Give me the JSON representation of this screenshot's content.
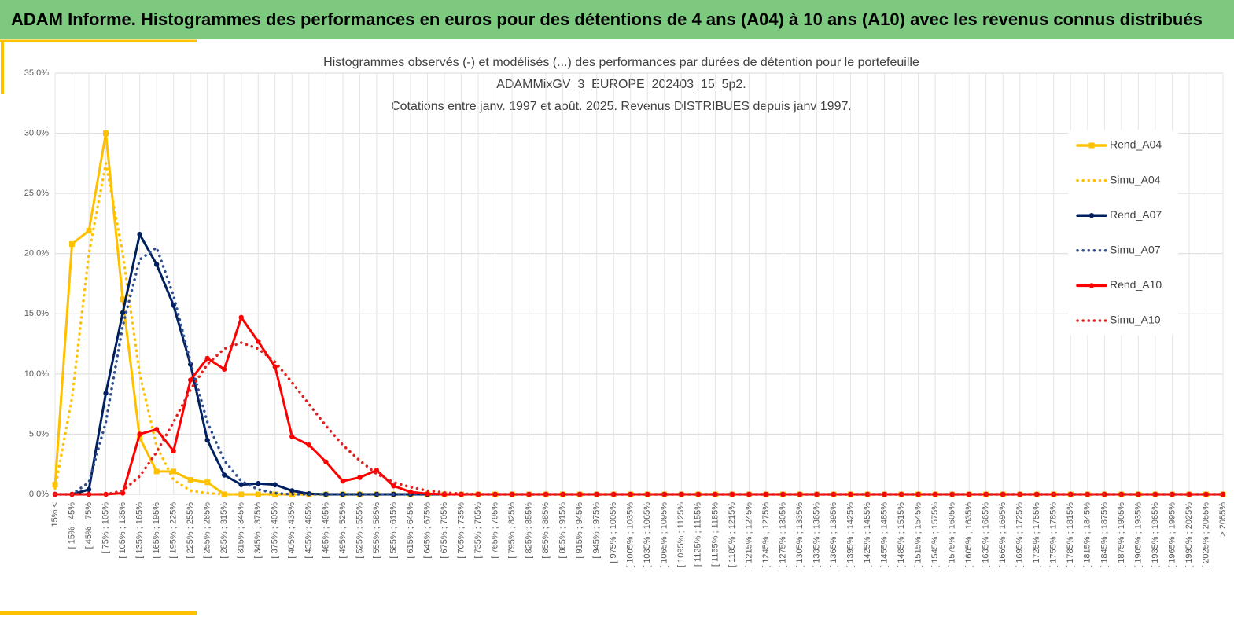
{
  "header": {
    "title": "ADAM Informe. Histogrammes des performances en euros pour des détentions de 4 ans (A04) à 10 ans (A10) avec les revenus connus distribués"
  },
  "chart_data": {
    "type": "line",
    "title": [
      "Histogrammes observés (-) et modélisés (...) des performances  par durées de détention pour le portefeuille",
      "ADAMMixGV_3_EUROPE_202403_15_5p2.",
      "Cotations  entre janv. 1997 et août. 2025. Revenus DISTRIBUES depuis janv 1997."
    ],
    "categories": [
      "15% <",
      "[ 15% ; 45%",
      "[ 45% ; 75%",
      "[ 75% ; 105%",
      "[ 105% ; 135%",
      "[ 135% ; 165%",
      "[ 165% ; 195%",
      "[ 195% ; 225%",
      "[ 225% ; 255%",
      "[ 255% ; 285%",
      "[ 285% ; 315%",
      "[ 315% ; 345%",
      "[ 345% ; 375%",
      "[ 375% ; 405%",
      "[ 405% ; 435%",
      "[ 435% ; 465%",
      "[ 465% ; 495%",
      "[ 495% ; 525%",
      "[ 525% ; 555%",
      "[ 555% ; 585%",
      "[ 585% ; 615%",
      "[ 615% ; 645%",
      "[ 645% ; 675%",
      "[ 675% ; 705%",
      "[ 705% ; 735%",
      "[ 735% ; 765%",
      "[ 765% ; 795%",
      "[ 795% ; 825%",
      "[ 825% ; 855%",
      "[ 855% ; 885%",
      "[ 885% ; 915%",
      "[ 915% ; 945%",
      "[ 945% ; 975%",
      "[ 975% ; 1005%",
      "[ 1005% ; 1035%",
      "[ 1035% ; 1065%",
      "[ 1065% ; 1095%",
      "[ 1095% ; 1125%",
      "[ 1125% ; 1155%",
      "[ 1155% ; 1185%",
      "[ 1185% ; 1215%",
      "[ 1215% ; 1245%",
      "[ 1245% ; 1275%",
      "[ 1275% ; 1305%",
      "[ 1305% ; 1335%",
      "[ 1335% ; 1365%",
      "[ 1365% ; 1395%",
      "[ 1395% ; 1425%",
      "[ 1425% ; 1455%",
      "[ 1455% ; 1485%",
      "[ 1485% ; 1515%",
      "[ 1515% ; 1545%",
      "[ 1545% ; 1575%",
      "[ 1575% ; 1605%",
      "[ 1605% ; 1635%",
      "[ 1635% ; 1665%",
      "[ 1665% ; 1695%",
      "[ 1695% ; 1725%",
      "[ 1725% ; 1755%",
      "[ 1755% ; 1785%",
      "[ 1785% ; 1815%",
      "[ 1815% ; 1845%",
      "[ 1845% ; 1875%",
      "[ 1875% ; 1905%",
      "[ 1905% ; 1935%",
      "[ 1935% ; 1965%",
      "[ 1965% ; 1995%",
      "[ 1995% ; 2025%",
      "[ 2025% ; 2055%",
      "> 2055%"
    ],
    "series": [
      {
        "name": "Rend_A04",
        "color": "#ffc000",
        "style": "solid",
        "marker": "square",
        "values": [
          0.8,
          20.8,
          21.9,
          30.0,
          16.2,
          4.7,
          1.9,
          1.9,
          1.2,
          1.0,
          0,
          0,
          0,
          0,
          0,
          0,
          0,
          0,
          0,
          0,
          0,
          0,
          0,
          0,
          0,
          0,
          0,
          0,
          0,
          0,
          0,
          0,
          0,
          0,
          0,
          0,
          0,
          0,
          0,
          0,
          0,
          0,
          0,
          0,
          0,
          0,
          0,
          0,
          0,
          0,
          0,
          0,
          0,
          0,
          0,
          0,
          0,
          0,
          0,
          0,
          0,
          0,
          0,
          0,
          0,
          0,
          0,
          0,
          0,
          0
        ]
      },
      {
        "name": "Simu_A04",
        "color": "#ffc000",
        "style": "dotted",
        "marker": null,
        "values": [
          0.5,
          8,
          20,
          27.5,
          20,
          10,
          4,
          1.2,
          0.3,
          0.1,
          0,
          0,
          0,
          0,
          0,
          0,
          0,
          0,
          0,
          0,
          0,
          0,
          0,
          0,
          0,
          0,
          0,
          0,
          0,
          0,
          0,
          0,
          0,
          0,
          0,
          0,
          0,
          0,
          0,
          0,
          0,
          0,
          0,
          0,
          0,
          0,
          0,
          0,
          0,
          0,
          0,
          0,
          0,
          0,
          0,
          0,
          0,
          0,
          0,
          0,
          0,
          0,
          0,
          0,
          0,
          0,
          0,
          0,
          0,
          0
        ]
      },
      {
        "name": "Rend_A07",
        "color": "#002060",
        "style": "solid",
        "marker": "circle",
        "values": [
          0,
          0,
          0.4,
          8.4,
          15.1,
          21.6,
          19.1,
          15.7,
          10.8,
          4.5,
          1.6,
          0.8,
          0.9,
          0.8,
          0.3,
          0.05,
          0,
          0,
          0,
          0,
          0,
          0,
          0,
          0,
          0,
          0,
          0,
          0,
          0,
          0,
          0,
          0,
          0,
          0,
          0,
          0,
          0,
          0,
          0,
          0,
          0,
          0,
          0,
          0,
          0,
          0,
          0,
          0,
          0,
          0,
          0,
          0,
          0,
          0,
          0,
          0,
          0,
          0,
          0,
          0,
          0,
          0,
          0,
          0,
          0,
          0,
          0,
          0,
          0,
          0
        ]
      },
      {
        "name": "Simu_A07",
        "color": "#2f4f8f",
        "style": "dotted",
        "marker": null,
        "values": [
          0,
          0,
          1,
          6,
          14,
          19.5,
          20.5,
          16.5,
          11,
          6,
          2.8,
          1.1,
          0.4,
          0.1,
          0,
          0,
          0,
          0,
          0,
          0,
          0,
          0,
          0,
          0,
          0,
          0,
          0,
          0,
          0,
          0,
          0,
          0,
          0,
          0,
          0,
          0,
          0,
          0,
          0,
          0,
          0,
          0,
          0,
          0,
          0,
          0,
          0,
          0,
          0,
          0,
          0,
          0,
          0,
          0,
          0,
          0,
          0,
          0,
          0,
          0,
          0,
          0,
          0,
          0,
          0,
          0,
          0,
          0,
          0,
          0
        ]
      },
      {
        "name": "Rend_A10",
        "color": "#ff0000",
        "style": "solid",
        "marker": "circle",
        "values": [
          0,
          0,
          0,
          0,
          0.1,
          5.0,
          5.4,
          3.6,
          9.5,
          11.3,
          10.4,
          14.7,
          12.7,
          10.6,
          4.8,
          4.1,
          2.7,
          1.1,
          1.4,
          2.0,
          0.7,
          0.2,
          0.05,
          0,
          0,
          0,
          0,
          0,
          0,
          0,
          0,
          0,
          0,
          0,
          0,
          0,
          0,
          0,
          0,
          0,
          0,
          0,
          0,
          0,
          0,
          0,
          0,
          0,
          0,
          0,
          0,
          0,
          0,
          0,
          0,
          0,
          0,
          0,
          0,
          0,
          0,
          0,
          0,
          0,
          0,
          0,
          0,
          0,
          0,
          0
        ]
      },
      {
        "name": "Simu_A10",
        "color": "#e02020",
        "style": "dotted",
        "marker": null,
        "values": [
          0,
          0,
          0,
          0,
          0.3,
          1.5,
          3.5,
          6,
          8.7,
          10.8,
          12.1,
          12.6,
          12.1,
          11,
          9.3,
          7.5,
          5.7,
          4.1,
          2.8,
          1.7,
          1.0,
          0.6,
          0.3,
          0.15,
          0.05,
          0,
          0,
          0,
          0,
          0,
          0,
          0,
          0,
          0,
          0,
          0,
          0,
          0,
          0,
          0,
          0,
          0,
          0,
          0,
          0,
          0,
          0,
          0,
          0,
          0,
          0,
          0,
          0,
          0,
          0,
          0,
          0,
          0,
          0,
          0,
          0,
          0,
          0,
          0,
          0,
          0,
          0,
          0,
          0,
          0
        ]
      }
    ],
    "ylim": [
      0,
      35
    ],
    "yticks": [
      {
        "value": 0,
        "label": "0,0%"
      },
      {
        "value": 5,
        "label": "5,0%"
      },
      {
        "value": 10,
        "label": "10,0%"
      },
      {
        "value": 15,
        "label": "15,0%"
      },
      {
        "value": 20,
        "label": "20,0%"
      },
      {
        "value": 25,
        "label": "25,0%"
      },
      {
        "value": 30,
        "label": "30,0%"
      },
      {
        "value": 35,
        "label": "35,0%"
      }
    ],
    "grid": true,
    "legend": "right"
  }
}
